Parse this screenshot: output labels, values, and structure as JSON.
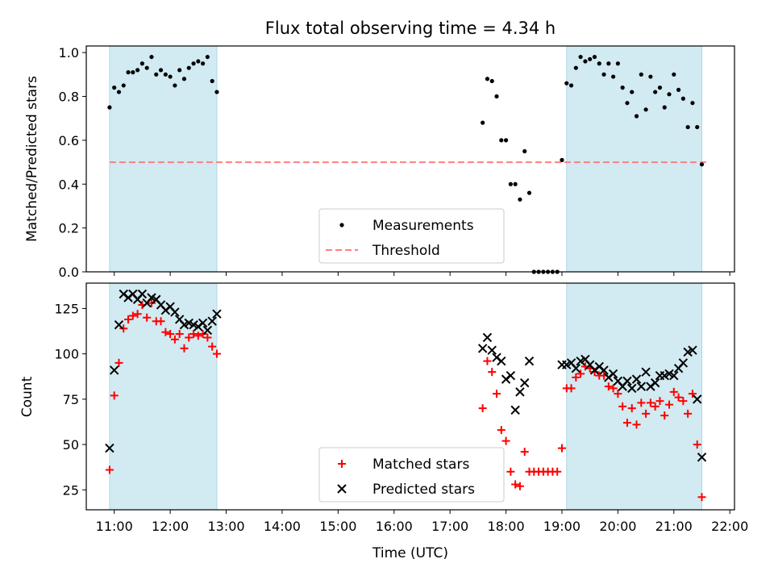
{
  "chart_data": [
    {
      "type": "scatter",
      "title": "Flux total observing time = 4.34 h",
      "xlabel": "",
      "ylabel": "Matched/Predicted stars",
      "x_is_time_utc": true,
      "xlim": [
        "10:30",
        "22:05"
      ],
      "ylim": [
        0,
        1.03
      ],
      "yticks": [
        0.0,
        0.2,
        0.4,
        0.6,
        0.8,
        1.0
      ],
      "ytick_labels": [
        "0.0",
        "0.2",
        "0.4",
        "0.6",
        "0.8",
        "1.0"
      ],
      "legend_placement": "lower center",
      "shaded_windows": [
        [
          "10:55",
          "12:50"
        ],
        [
          "19:05",
          "21:30"
        ]
      ],
      "shade_color": "#add8e6",
      "threshold": {
        "name": "Threshold",
        "value": 0.5,
        "x_range": [
          "10:55",
          "21:35"
        ],
        "color": "#ff7f7f",
        "style": "dashed"
      },
      "series": [
        {
          "name": "Measurements",
          "color": "#000000",
          "marker": "dot",
          "points": [
            [
              "10:55",
              0.75
            ],
            [
              "11:00",
              0.84
            ],
            [
              "11:05",
              0.82
            ],
            [
              "11:10",
              0.85
            ],
            [
              "11:15",
              0.91
            ],
            [
              "11:20",
              0.91
            ],
            [
              "11:25",
              0.92
            ],
            [
              "11:30",
              0.95
            ],
            [
              "11:35",
              0.93
            ],
            [
              "11:40",
              0.98
            ],
            [
              "11:45",
              0.9
            ],
            [
              "11:50",
              0.92
            ],
            [
              "11:55",
              0.9
            ],
            [
              "12:00",
              0.89
            ],
            [
              "12:05",
              0.85
            ],
            [
              "12:10",
              0.92
            ],
            [
              "12:15",
              0.88
            ],
            [
              "12:20",
              0.93
            ],
            [
              "12:25",
              0.95
            ],
            [
              "12:30",
              0.96
            ],
            [
              "12:35",
              0.95
            ],
            [
              "12:40",
              0.98
            ],
            [
              "12:45",
              0.87
            ],
            [
              "12:50",
              0.82
            ],
            [
              "17:35",
              0.68
            ],
            [
              "17:40",
              0.88
            ],
            [
              "17:45",
              0.87
            ],
            [
              "17:50",
              0.8
            ],
            [
              "17:55",
              0.6
            ],
            [
              "18:00",
              0.6
            ],
            [
              "18:05",
              0.4
            ],
            [
              "18:10",
              0.4
            ],
            [
              "18:15",
              0.33
            ],
            [
              "18:20",
              0.55
            ],
            [
              "18:25",
              0.36
            ],
            [
              "18:30",
              0.0
            ],
            [
              "18:35",
              0.0
            ],
            [
              "18:40",
              0.0
            ],
            [
              "18:45",
              0.0
            ],
            [
              "18:50",
              0.0
            ],
            [
              "18:55",
              0.0
            ],
            [
              "19:00",
              0.51
            ],
            [
              "19:05",
              0.86
            ],
            [
              "19:10",
              0.85
            ],
            [
              "19:15",
              0.93
            ],
            [
              "19:20",
              0.98
            ],
            [
              "19:25",
              0.96
            ],
            [
              "19:30",
              0.97
            ],
            [
              "19:35",
              0.98
            ],
            [
              "19:40",
              0.95
            ],
            [
              "19:45",
              0.9
            ],
            [
              "19:50",
              0.95
            ],
            [
              "19:55",
              0.89
            ],
            [
              "20:00",
              0.95
            ],
            [
              "20:05",
              0.84
            ],
            [
              "20:10",
              0.77
            ],
            [
              "20:15",
              0.82
            ],
            [
              "20:20",
              0.71
            ],
            [
              "20:25",
              0.9
            ],
            [
              "20:30",
              0.74
            ],
            [
              "20:35",
              0.89
            ],
            [
              "20:40",
              0.82
            ],
            [
              "20:45",
              0.84
            ],
            [
              "20:50",
              0.75
            ],
            [
              "20:55",
              0.81
            ],
            [
              "21:00",
              0.9
            ],
            [
              "21:05",
              0.83
            ],
            [
              "21:10",
              0.79
            ],
            [
              "21:15",
              0.66
            ],
            [
              "21:20",
              0.77
            ],
            [
              "21:25",
              0.66
            ],
            [
              "21:30",
              0.49
            ]
          ]
        }
      ]
    },
    {
      "type": "scatter",
      "title": "",
      "xlabel": "Time (UTC)",
      "ylabel": "Count",
      "x_is_time_utc": true,
      "xlim": [
        "10:30",
        "22:05"
      ],
      "ylim": [
        14,
        139
      ],
      "yticks": [
        25,
        50,
        75,
        100,
        125
      ],
      "ytick_labels": [
        "25",
        "50",
        "75",
        "100",
        "125"
      ],
      "xtick_labels": [
        "11:00",
        "12:00",
        "13:00",
        "14:00",
        "15:00",
        "16:00",
        "17:00",
        "18:00",
        "19:00",
        "20:00",
        "21:00",
        "22:00"
      ],
      "legend_placement": "lower center",
      "shaded_windows": [
        [
          "10:55",
          "12:50"
        ],
        [
          "19:05",
          "21:30"
        ]
      ],
      "shade_color": "#add8e6",
      "series": [
        {
          "name": "Matched stars",
          "color": "#ff0000",
          "marker": "plus",
          "points": [
            [
              "10:55",
              36
            ],
            [
              "11:00",
              77
            ],
            [
              "11:05",
              95
            ],
            [
              "11:10",
              114
            ],
            [
              "11:15",
              119
            ],
            [
              "11:20",
              121
            ],
            [
              "11:25",
              122
            ],
            [
              "11:30",
              127
            ],
            [
              "11:35",
              120
            ],
            [
              "11:40",
              128
            ],
            [
              "11:45",
              118
            ],
            [
              "11:50",
              118
            ],
            [
              "11:55",
              112
            ],
            [
              "12:00",
              111
            ],
            [
              "12:05",
              108
            ],
            [
              "12:10",
              111
            ],
            [
              "12:15",
              103
            ],
            [
              "12:20",
              109
            ],
            [
              "12:25",
              111
            ],
            [
              "12:30",
              110
            ],
            [
              "12:35",
              111
            ],
            [
              "12:40",
              109
            ],
            [
              "12:45",
              104
            ],
            [
              "12:50",
              100
            ],
            [
              "17:35",
              70
            ],
            [
              "17:40",
              96
            ],
            [
              "17:45",
              90
            ],
            [
              "17:50",
              78
            ],
            [
              "17:55",
              58
            ],
            [
              "18:00",
              52
            ],
            [
              "18:05",
              35
            ],
            [
              "18:10",
              28
            ],
            [
              "18:15",
              27
            ],
            [
              "18:20",
              46
            ],
            [
              "18:25",
              35
            ],
            [
              "18:30",
              35
            ],
            [
              "18:35",
              35
            ],
            [
              "18:40",
              35
            ],
            [
              "18:45",
              35
            ],
            [
              "18:50",
              35
            ],
            [
              "18:55",
              35
            ],
            [
              "19:00",
              48
            ],
            [
              "19:05",
              81
            ],
            [
              "19:10",
              81
            ],
            [
              "19:15",
              87
            ],
            [
              "19:20",
              89
            ],
            [
              "19:25",
              93
            ],
            [
              "19:30",
              92
            ],
            [
              "19:35",
              90
            ],
            [
              "19:40",
              88
            ],
            [
              "19:45",
              88
            ],
            [
              "19:50",
              82
            ],
            [
              "19:55",
              81
            ],
            [
              "20:00",
              78
            ],
            [
              "20:05",
              71
            ],
            [
              "20:10",
              62
            ],
            [
              "20:15",
              70
            ],
            [
              "20:20",
              61
            ],
            [
              "20:25",
              73
            ],
            [
              "20:30",
              67
            ],
            [
              "20:35",
              73
            ],
            [
              "20:40",
              71
            ],
            [
              "20:45",
              74
            ],
            [
              "20:50",
              66
            ],
            [
              "20:55",
              72
            ],
            [
              "21:00",
              79
            ],
            [
              "21:05",
              76
            ],
            [
              "21:10",
              74
            ],
            [
              "21:15",
              67
            ],
            [
              "21:20",
              78
            ],
            [
              "21:25",
              50
            ],
            [
              "21:30",
              21
            ]
          ]
        },
        {
          "name": "Predicted stars",
          "color": "#000000",
          "marker": "x",
          "points": [
            [
              "10:55",
              48
            ],
            [
              "11:00",
              91
            ],
            [
              "11:05",
              116
            ],
            [
              "11:10",
              133
            ],
            [
              "11:15",
              131
            ],
            [
              "11:20",
              133
            ],
            [
              "11:25",
              130
            ],
            [
              "11:30",
              133
            ],
            [
              "11:35",
              128
            ],
            [
              "11:40",
              131
            ],
            [
              "11:45",
              130
            ],
            [
              "11:50",
              127
            ],
            [
              "11:55",
              124
            ],
            [
              "12:00",
              126
            ],
            [
              "12:05",
              123
            ],
            [
              "12:10",
              119
            ],
            [
              "12:15",
              116
            ],
            [
              "12:20",
              117
            ],
            [
              "12:25",
              116
            ],
            [
              "12:30",
              115
            ],
            [
              "12:35",
              117
            ],
            [
              "12:40",
              113
            ],
            [
              "12:45",
              118
            ],
            [
              "12:50",
              122
            ],
            [
              "17:35",
              103
            ],
            [
              "17:40",
              109
            ],
            [
              "17:45",
              102
            ],
            [
              "17:50",
              98
            ],
            [
              "17:55",
              96
            ],
            [
              "18:00",
              86
            ],
            [
              "18:05",
              88
            ],
            [
              "18:10",
              69
            ],
            [
              "18:15",
              79
            ],
            [
              "18:20",
              84
            ],
            [
              "18:25",
              96
            ],
            [
              "19:00",
              94
            ],
            [
              "19:05",
              94
            ],
            [
              "19:10",
              95
            ],
            [
              "19:15",
              92
            ],
            [
              "19:20",
              96
            ],
            [
              "19:25",
              97
            ],
            [
              "19:30",
              94
            ],
            [
              "19:35",
              91
            ],
            [
              "19:40",
              93
            ],
            [
              "19:45",
              91
            ],
            [
              "19:50",
              87
            ],
            [
              "19:55",
              89
            ],
            [
              "20:00",
              85
            ],
            [
              "20:05",
              82
            ],
            [
              "20:10",
              85
            ],
            [
              "20:15",
              81
            ],
            [
              "20:20",
              86
            ],
            [
              "20:25",
              82
            ],
            [
              "20:30",
              90
            ],
            [
              "20:35",
              82
            ],
            [
              "20:40",
              84
            ],
            [
              "20:45",
              88
            ],
            [
              "20:50",
              88
            ],
            [
              "20:55",
              89
            ],
            [
              "21:00",
              88
            ],
            [
              "21:05",
              92
            ],
            [
              "21:10",
              95
            ],
            [
              "21:15",
              101
            ],
            [
              "21:20",
              102
            ],
            [
              "21:25",
              75
            ],
            [
              "21:30",
              43
            ]
          ]
        }
      ]
    }
  ]
}
